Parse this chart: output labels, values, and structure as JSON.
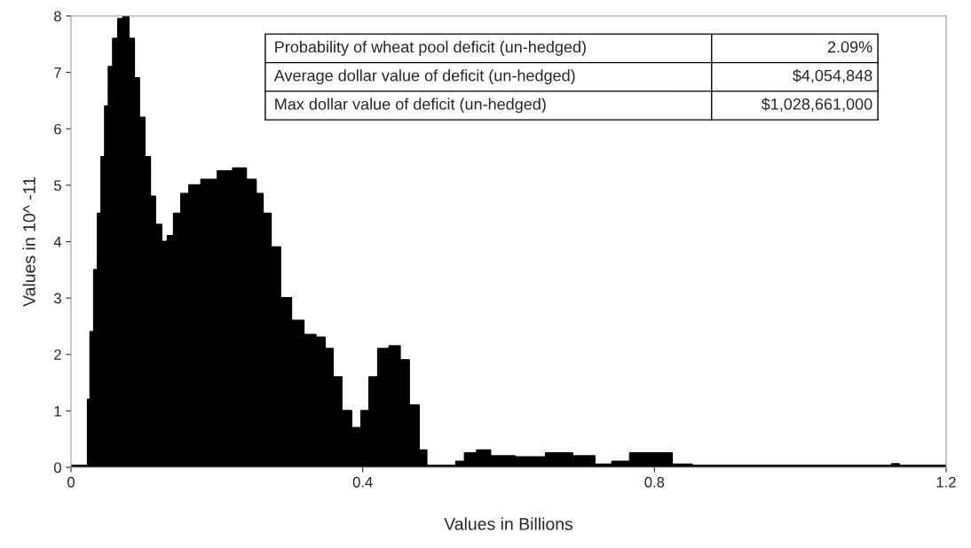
{
  "chart_data": {
    "type": "area",
    "xlabel": "Values in Billions",
    "ylabel": "Values in 10^ -11",
    "xlim": [
      0,
      1.2
    ],
    "xticks": [
      0,
      0.4,
      0.8,
      1.2
    ],
    "ylim": [
      0,
      8
    ],
    "yticks": [
      0,
      1,
      2,
      3,
      4,
      5,
      6,
      7,
      8
    ],
    "grid": false,
    "legend": false,
    "annotations": [
      "Probability of wheat pool deficit (un-hedged)",
      "2.09%",
      "Average dollar value of deficit (un-hedged)",
      "$4,054,848",
      "Max dollar value of deficit (un-hedged)",
      "$1,028,661,000"
    ],
    "series": [
      {
        "color": "#000000",
        "x": [
          0.0,
          0.022,
          0.024,
          0.029,
          0.034,
          0.039,
          0.044,
          0.049,
          0.054,
          0.061,
          0.068,
          0.075,
          0.083,
          0.09,
          0.097,
          0.105,
          0.112,
          0.119,
          0.129,
          0.136,
          0.146,
          0.156,
          0.168,
          0.189,
          0.213,
          0.231,
          0.249,
          0.258,
          0.268,
          0.28,
          0.294,
          0.31,
          0.328,
          0.343,
          0.353,
          0.365,
          0.377,
          0.392,
          0.404,
          0.414,
          0.428,
          0.445,
          0.457,
          0.47,
          0.484,
          0.491,
          0.523,
          0.533,
          0.547,
          0.566,
          0.584,
          0.633,
          0.669,
          0.706,
          0.73,
          0.754,
          0.779,
          0.809,
          0.839,
          0.864,
          1.12,
          1.131,
          1.14,
          1.2
        ],
        "values": [
          0.03,
          0.03,
          1.2,
          2.4,
          3.5,
          4.5,
          5.5,
          6.4,
          7.1,
          7.6,
          7.95,
          8.0,
          7.6,
          6.9,
          6.2,
          5.5,
          4.8,
          4.3,
          4.0,
          4.1,
          4.5,
          4.85,
          5.0,
          5.1,
          5.25,
          5.3,
          5.1,
          4.85,
          4.5,
          3.9,
          3.0,
          2.6,
          2.35,
          2.3,
          2.1,
          1.6,
          1.0,
          0.7,
          1.0,
          1.6,
          2.1,
          2.15,
          1.9,
          1.1,
          0.3,
          0.03,
          0.03,
          0.1,
          0.25,
          0.3,
          0.2,
          0.18,
          0.25,
          0.2,
          0.05,
          0.1,
          0.25,
          0.25,
          0.05,
          0.03,
          0.03,
          0.06,
          0.03,
          0.03
        ]
      }
    ]
  }
}
